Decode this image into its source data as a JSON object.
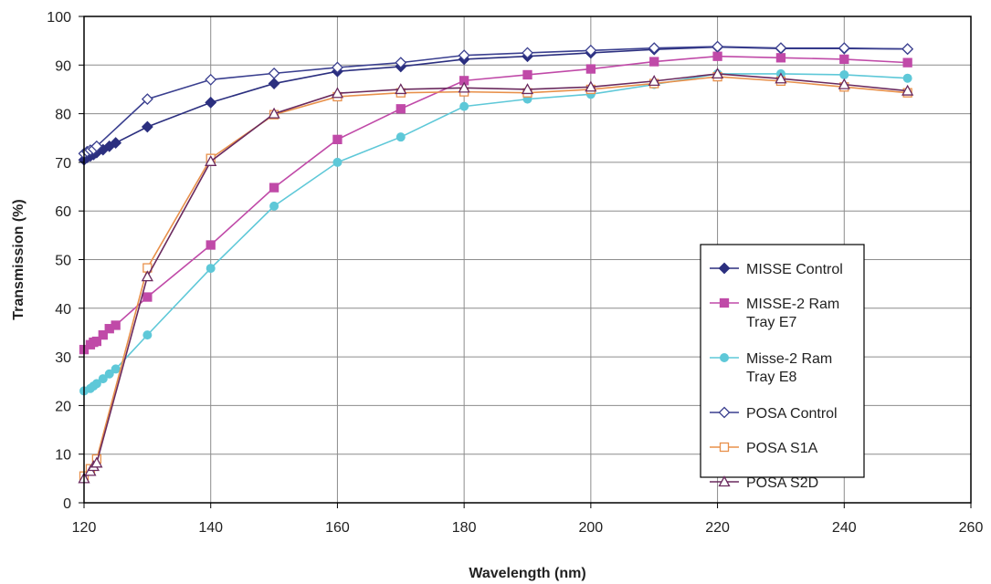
{
  "chart_data": {
    "type": "line",
    "xlabel": "Wavelength (nm)",
    "ylabel": "Transmission (%)",
    "xlim": [
      120,
      260
    ],
    "ylim": [
      0,
      100
    ],
    "xticks": [
      120,
      140,
      160,
      180,
      200,
      220,
      240,
      260
    ],
    "yticks": [
      0,
      10,
      20,
      30,
      40,
      50,
      60,
      70,
      80,
      90,
      100
    ],
    "grid": true,
    "legend_position": "right",
    "series": [
      {
        "name": "MISSE Control",
        "color": "#2b2f7f",
        "marker": "diamond-filled",
        "x": [
          120,
          120.5,
          121,
          121.5,
          122,
          123,
          124,
          125,
          130,
          140,
          150,
          160,
          170,
          180,
          190,
          200,
          210,
          220,
          230,
          240,
          250
        ],
        "y": [
          70.5,
          71,
          71.3,
          71.6,
          72,
          72.6,
          73.3,
          74,
          77.3,
          82.3,
          86.2,
          88.7,
          89.7,
          91.2,
          91.8,
          92.5,
          93.2,
          93.7,
          93.4,
          93.4,
          93.3
        ]
      },
      {
        "name": "MISSE-2 Ram Tray E7",
        "color": "#c04aa8",
        "marker": "square-filled",
        "x": [
          120,
          121,
          121.5,
          122,
          123,
          124,
          125,
          130,
          140,
          150,
          160,
          170,
          180,
          190,
          200,
          210,
          220,
          230,
          240,
          250
        ],
        "y": [
          31.5,
          32.5,
          33,
          33.2,
          34.5,
          35.8,
          36.5,
          42.3,
          53,
          64.8,
          74.7,
          81,
          86.8,
          88,
          89.2,
          90.7,
          91.8,
          91.5,
          91.2,
          90.5
        ]
      },
      {
        "name": "Misse-2 Ram Tray E8",
        "color": "#5ec8d8",
        "marker": "circle-filled",
        "x": [
          120,
          121,
          121.5,
          122,
          123,
          124,
          125,
          130,
          140,
          150,
          160,
          170,
          180,
          190,
          200,
          210,
          220,
          230,
          240,
          250
        ],
        "y": [
          23,
          23.5,
          24,
          24.5,
          25.5,
          26.5,
          27.5,
          34.5,
          48.2,
          61,
          70,
          75.2,
          81.5,
          83,
          84,
          86,
          88.2,
          88.2,
          88,
          87.3
        ]
      },
      {
        "name": "POSA Control",
        "color": "#3a3f8f",
        "marker": "diamond-open",
        "x": [
          120,
          120.5,
          121,
          121.5,
          122,
          130,
          140,
          150,
          160,
          170,
          180,
          190,
          200,
          210,
          220,
          230,
          240,
          250
        ],
        "y": [
          71.8,
          72.2,
          72.5,
          72.7,
          73.3,
          83,
          87,
          88.3,
          89.5,
          90.5,
          92,
          92.5,
          93,
          93.5,
          93.8,
          93.5,
          93.5,
          93.3
        ]
      },
      {
        "name": "POSA S1A",
        "color": "#e8904a",
        "marker": "square-open",
        "x": [
          120,
          121,
          122,
          130,
          140,
          150,
          160,
          170,
          180,
          190,
          200,
          210,
          220,
          230,
          240,
          250
        ],
        "y": [
          5.5,
          7,
          9,
          48.3,
          70.8,
          79.8,
          83.5,
          84.3,
          84.5,
          84.3,
          85,
          86.2,
          87.6,
          86.7,
          85.5,
          84.3
        ]
      },
      {
        "name": "POSA S2D",
        "color": "#6a2a5e",
        "marker": "triangle-open",
        "x": [
          120,
          121,
          121.5,
          122,
          130,
          140,
          150,
          160,
          170,
          180,
          190,
          200,
          210,
          220,
          230,
          240,
          250
        ],
        "y": [
          5,
          6.5,
          7.5,
          8.2,
          46.5,
          70.2,
          80,
          84.2,
          85,
          85.3,
          85,
          85.5,
          86.7,
          88.2,
          87.2,
          86,
          84.7
        ]
      }
    ],
    "legend_entries": [
      {
        "lines": [
          "MISSE Control"
        ],
        "series_index": 0
      },
      {
        "lines": [
          "MISSE-2 Ram",
          "Tray E7"
        ],
        "series_index": 1
      },
      {
        "lines": [
          "Misse-2 Ram",
          "Tray E8"
        ],
        "series_index": 2
      },
      {
        "lines": [
          "POSA Control"
        ],
        "series_index": 3
      },
      {
        "lines": [
          "POSA S1A"
        ],
        "series_index": 4
      },
      {
        "lines": [
          "POSA S2D"
        ],
        "series_index": 5
      }
    ]
  }
}
